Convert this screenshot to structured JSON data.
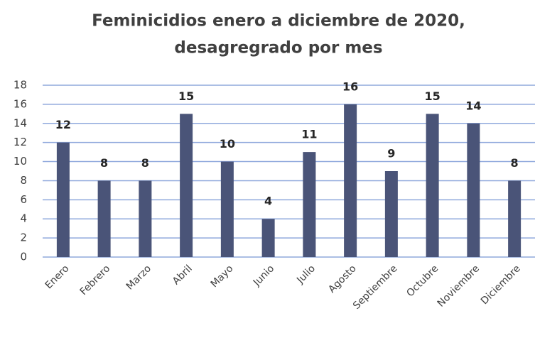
{
  "chart_data": {
    "type": "bar",
    "title": [
      "Feminicidios enero a diciembre de 2020,",
      "desagregrado por mes"
    ],
    "categories": [
      "Enero",
      "Febrero",
      "Marzo",
      "Abril",
      "Mayo",
      "Junio",
      "Julio",
      "Agosto",
      "Septiembre",
      "Octubre",
      "Noviembre",
      "Diciembre"
    ],
    "values": [
      12,
      8,
      8,
      15,
      10,
      4,
      11,
      16,
      9,
      15,
      14,
      8
    ],
    "color": "#4a5478",
    "ylim": [
      0,
      18
    ],
    "yticks": [
      0,
      2,
      4,
      6,
      8,
      10,
      12,
      14,
      16,
      18
    ],
    "grid": true
  }
}
